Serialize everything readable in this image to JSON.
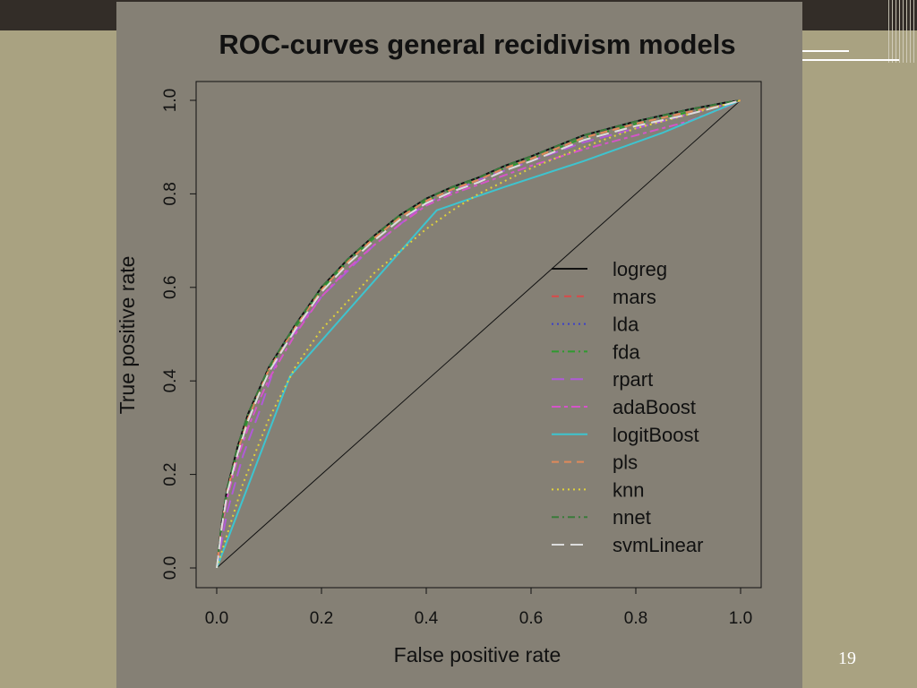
{
  "slide": {
    "page_number": "19",
    "background_color": "#a9a281",
    "top_bar_color": "#332d28",
    "panel_color": "#858075"
  },
  "chart_data": {
    "type": "line",
    "title": "ROC-curves  general recidivism models",
    "xlabel": "False positive rate",
    "ylabel": "True positive rate",
    "xlim": [
      0,
      1
    ],
    "ylim": [
      0,
      1
    ],
    "xticks": [
      "0.0",
      "0.2",
      "0.4",
      "0.6",
      "0.8",
      "1.0"
    ],
    "yticks": [
      "0.0",
      "0.2",
      "0.4",
      "0.6",
      "0.8",
      "1.0"
    ],
    "grid": false,
    "legend_position": "right-middle",
    "diagonal": [
      [
        0,
        0
      ],
      [
        1,
        1
      ]
    ],
    "series": [
      {
        "name": "logreg",
        "color": "#111111",
        "dash": "solid",
        "x": [
          0,
          0.01,
          0.02,
          0.04,
          0.06,
          0.08,
          0.1,
          0.15,
          0.2,
          0.25,
          0.3,
          0.35,
          0.4,
          0.45,
          0.5,
          0.55,
          0.6,
          0.7,
          0.8,
          0.9,
          0.97,
          1.0
        ],
        "y": [
          0,
          0.1,
          0.17,
          0.26,
          0.33,
          0.38,
          0.43,
          0.52,
          0.6,
          0.66,
          0.71,
          0.755,
          0.79,
          0.815,
          0.835,
          0.86,
          0.88,
          0.925,
          0.955,
          0.98,
          0.995,
          1.0
        ]
      },
      {
        "name": "mars",
        "color": "#d94a4a",
        "dash": "dashed",
        "x": [
          0,
          0.01,
          0.02,
          0.04,
          0.06,
          0.08,
          0.1,
          0.15,
          0.2,
          0.25,
          0.3,
          0.35,
          0.4,
          0.45,
          0.5,
          0.55,
          0.6,
          0.7,
          0.8,
          0.9,
          0.97,
          1.0
        ],
        "y": [
          0,
          0.09,
          0.16,
          0.25,
          0.32,
          0.375,
          0.425,
          0.515,
          0.595,
          0.655,
          0.705,
          0.75,
          0.785,
          0.81,
          0.83,
          0.855,
          0.875,
          0.92,
          0.95,
          0.975,
          0.99,
          1.0
        ]
      },
      {
        "name": "lda",
        "color": "#3b3fc8",
        "dash": "dotted",
        "x": [
          0,
          0.01,
          0.02,
          0.04,
          0.06,
          0.08,
          0.1,
          0.15,
          0.2,
          0.25,
          0.3,
          0.35,
          0.4,
          0.45,
          0.5,
          0.55,
          0.6,
          0.7,
          0.8,
          0.9,
          0.97,
          1.0
        ],
        "y": [
          0,
          0.1,
          0.17,
          0.255,
          0.325,
          0.38,
          0.43,
          0.52,
          0.6,
          0.66,
          0.71,
          0.755,
          0.79,
          0.815,
          0.835,
          0.86,
          0.88,
          0.925,
          0.955,
          0.98,
          0.995,
          1.0
        ]
      },
      {
        "name": "fda",
        "color": "#2f9a2f",
        "dash": "dashdot",
        "x": [
          0,
          0.01,
          0.02,
          0.04,
          0.06,
          0.08,
          0.1,
          0.15,
          0.2,
          0.25,
          0.3,
          0.35,
          0.4,
          0.45,
          0.5,
          0.55,
          0.6,
          0.7,
          0.8,
          0.9,
          0.97,
          1.0
        ],
        "y": [
          0,
          0.095,
          0.165,
          0.25,
          0.32,
          0.375,
          0.425,
          0.515,
          0.595,
          0.655,
          0.705,
          0.75,
          0.785,
          0.81,
          0.83,
          0.855,
          0.875,
          0.92,
          0.95,
          0.975,
          0.99,
          1.0
        ]
      },
      {
        "name": "rpart",
        "color": "#b05ad8",
        "dash": "longdash",
        "x": [
          0,
          0.02,
          0.05,
          0.08,
          0.12,
          0.2,
          0.3,
          0.4,
          0.5,
          0.6,
          0.7,
          0.8,
          0.9,
          1.0
        ],
        "y": [
          0,
          0.12,
          0.24,
          0.33,
          0.46,
          0.58,
          0.69,
          0.78,
          0.83,
          0.87,
          0.91,
          0.94,
          0.97,
          1.0
        ]
      },
      {
        "name": "adaBoost",
        "color": "#d455c8",
        "dash": "twodash",
        "x": [
          0,
          0.01,
          0.02,
          0.04,
          0.06,
          0.08,
          0.1,
          0.15,
          0.2,
          0.25,
          0.3,
          0.35,
          0.4,
          0.45,
          0.5,
          0.55,
          0.6,
          0.7,
          0.8,
          0.9,
          0.97,
          1.0
        ],
        "y": [
          0,
          0.085,
          0.15,
          0.235,
          0.3,
          0.355,
          0.405,
          0.5,
          0.58,
          0.64,
          0.69,
          0.735,
          0.775,
          0.8,
          0.82,
          0.84,
          0.86,
          0.895,
          0.925,
          0.955,
          0.985,
          1.0
        ]
      },
      {
        "name": "logitBoost",
        "color": "#3ec4cf",
        "dash": "solid",
        "x": [
          0,
          0.14,
          0.42,
          0.55,
          0.7,
          0.85,
          1.0
        ],
        "y": [
          0,
          0.41,
          0.765,
          0.815,
          0.87,
          0.93,
          1.0
        ]
      },
      {
        "name": "pls",
        "color": "#e08a5a",
        "dash": "dashed",
        "x": [
          0,
          0.01,
          0.02,
          0.04,
          0.06,
          0.08,
          0.1,
          0.15,
          0.2,
          0.25,
          0.3,
          0.35,
          0.4,
          0.45,
          0.5,
          0.55,
          0.6,
          0.7,
          0.8,
          0.9,
          0.97,
          1.0
        ],
        "y": [
          0,
          0.095,
          0.165,
          0.25,
          0.32,
          0.375,
          0.425,
          0.515,
          0.595,
          0.655,
          0.705,
          0.75,
          0.785,
          0.81,
          0.83,
          0.855,
          0.875,
          0.92,
          0.95,
          0.975,
          0.99,
          1.0
        ]
      },
      {
        "name": "knn",
        "color": "#e0d23a",
        "dash": "dotted",
        "x": [
          0,
          0.05,
          0.1,
          0.15,
          0.2,
          0.3,
          0.4,
          0.45,
          0.5,
          0.6,
          0.7,
          0.8,
          0.9,
          1.0
        ],
        "y": [
          0,
          0.18,
          0.32,
          0.43,
          0.51,
          0.63,
          0.725,
          0.765,
          0.8,
          0.855,
          0.9,
          0.94,
          0.97,
          1.0
        ]
      },
      {
        "name": "nnet",
        "color": "#3a7a3a",
        "dash": "dashdot",
        "x": [
          0,
          0.01,
          0.02,
          0.04,
          0.06,
          0.08,
          0.1,
          0.15,
          0.2,
          0.25,
          0.3,
          0.35,
          0.4,
          0.45,
          0.5,
          0.55,
          0.6,
          0.7,
          0.8,
          0.9,
          0.97,
          1.0
        ],
        "y": [
          0,
          0.1,
          0.17,
          0.26,
          0.33,
          0.38,
          0.43,
          0.52,
          0.6,
          0.66,
          0.71,
          0.755,
          0.79,
          0.815,
          0.835,
          0.86,
          0.88,
          0.925,
          0.955,
          0.98,
          0.995,
          1.0
        ]
      },
      {
        "name": "svmLinear",
        "color": "#dcdcdc",
        "dash": "longdash",
        "x": [
          0,
          0.01,
          0.02,
          0.04,
          0.06,
          0.08,
          0.1,
          0.15,
          0.2,
          0.25,
          0.3,
          0.35,
          0.4,
          0.45,
          0.5,
          0.55,
          0.6,
          0.7,
          0.8,
          0.9,
          0.97,
          1.0
        ],
        "y": [
          0,
          0.09,
          0.16,
          0.245,
          0.315,
          0.37,
          0.42,
          0.51,
          0.59,
          0.65,
          0.7,
          0.745,
          0.78,
          0.805,
          0.825,
          0.85,
          0.87,
          0.915,
          0.945,
          0.97,
          0.99,
          1.0
        ]
      }
    ]
  }
}
